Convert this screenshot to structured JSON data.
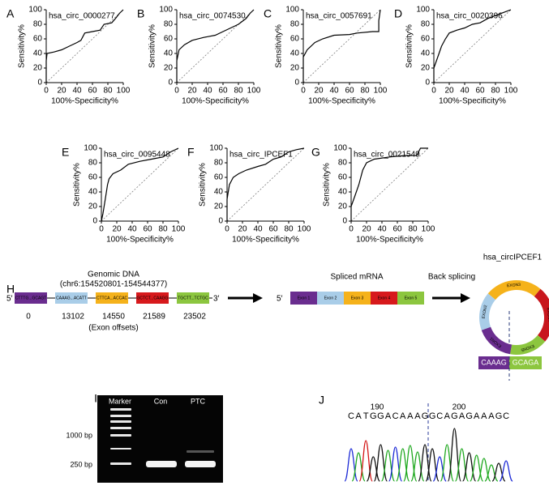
{
  "chart_data": [
    {
      "type": "line",
      "panel": "A",
      "title": "hsa_circ_0000277",
      "xlabel": "100%-Specificity%",
      "ylabel": "Sensitivity%",
      "color": "#000000",
      "x": [
        0,
        0,
        1,
        10,
        20,
        30,
        40,
        45,
        50,
        60,
        70,
        75,
        85,
        90,
        95,
        100
      ],
      "values": [
        0,
        30,
        40,
        42,
        45,
        50,
        55,
        58,
        68,
        70,
        72,
        80,
        82,
        88,
        95,
        100
      ],
      "xlim": [
        0,
        100
      ],
      "ylim": [
        0,
        100
      ],
      "xticks": [
        0,
        20,
        40,
        60,
        80,
        100
      ],
      "yticks": [
        0,
        20,
        40,
        60,
        80,
        100
      ]
    },
    {
      "type": "line",
      "panel": "B",
      "title": "hsa_circ_0074530",
      "xlabel": "100%-Specificity%",
      "ylabel": "Sensitivity%",
      "color": "#000000",
      "x": [
        0,
        0,
        3,
        10,
        20,
        35,
        50,
        60,
        70,
        80,
        90,
        95,
        100
      ],
      "values": [
        0,
        30,
        45,
        52,
        58,
        62,
        65,
        70,
        75,
        80,
        88,
        95,
        100
      ],
      "xlim": [
        0,
        100
      ],
      "ylim": [
        0,
        100
      ],
      "xticks": [
        0,
        20,
        40,
        60,
        80,
        100
      ],
      "yticks": [
        0,
        20,
        40,
        60,
        80,
        100
      ]
    },
    {
      "type": "line",
      "panel": "C",
      "title": "hsa_circ_0057691",
      "xlabel": "100%-Specificity%",
      "ylabel": "Sensitivity%",
      "color": "#000000",
      "x": [
        0,
        0,
        5,
        15,
        25,
        40,
        60,
        70,
        90,
        98,
        98,
        100
      ],
      "values": [
        0,
        35,
        45,
        55,
        60,
        65,
        66,
        68,
        70,
        70,
        85,
        100
      ],
      "xlim": [
        0,
        100
      ],
      "ylim": [
        0,
        100
      ],
      "xticks": [
        0,
        20,
        40,
        60,
        80,
        100
      ],
      "yticks": [
        0,
        20,
        40,
        60,
        80,
        100
      ]
    },
    {
      "type": "line",
      "panel": "D",
      "title": "hsa_circ_0020396",
      "xlabel": "100%-Specificity%",
      "ylabel": "Sensitivity%",
      "color": "#000000",
      "x": [
        0,
        0,
        5,
        10,
        15,
        20,
        30,
        40,
        50,
        60,
        70,
        80,
        90,
        100
      ],
      "values": [
        0,
        20,
        35,
        50,
        60,
        68,
        72,
        75,
        80,
        82,
        88,
        92,
        96,
        100
      ],
      "xlim": [
        0,
        100
      ],
      "ylim": [
        0,
        100
      ],
      "xticks": [
        0,
        20,
        40,
        60,
        80,
        100
      ],
      "yticks": [
        0,
        20,
        40,
        60,
        80,
        100
      ]
    },
    {
      "type": "line",
      "panel": "E",
      "title": "hsa_circ_0095448",
      "xlabel": "100%-Specificity%",
      "ylabel": "Sensitivity%",
      "color": "#000000",
      "x": [
        0,
        2,
        5,
        8,
        10,
        15,
        25,
        35,
        50,
        65,
        80,
        90,
        100
      ],
      "values": [
        0,
        10,
        30,
        50,
        58,
        65,
        70,
        78,
        82,
        85,
        88,
        95,
        100
      ],
      "xlim": [
        0,
        100
      ],
      "ylim": [
        0,
        100
      ],
      "xticks": [
        0,
        20,
        40,
        60,
        80,
        100
      ],
      "yticks": [
        0,
        20,
        40,
        60,
        80,
        100
      ]
    },
    {
      "type": "line",
      "panel": "F",
      "title": "hsa_circ_IPCEF1",
      "xlabel": "100%-Specificity%",
      "ylabel": "Sensitivity%",
      "color": "#000000",
      "x": [
        0,
        0,
        3,
        8,
        15,
        25,
        40,
        50,
        60,
        70,
        80,
        90,
        100
      ],
      "values": [
        0,
        30,
        50,
        60,
        65,
        70,
        75,
        78,
        85,
        88,
        95,
        98,
        100
      ],
      "xlim": [
        0,
        100
      ],
      "ylim": [
        0,
        100
      ],
      "xticks": [
        0,
        20,
        40,
        60,
        80,
        100
      ],
      "yticks": [
        0,
        20,
        40,
        60,
        80,
        100
      ]
    },
    {
      "type": "line",
      "panel": "G",
      "title": "hsa_circ_0021549",
      "xlabel": "100%-Specificity%",
      "ylabel": "Sensitivity%",
      "color": "#000000",
      "x": [
        0,
        0,
        5,
        10,
        15,
        20,
        30,
        50,
        70,
        85,
        90,
        100
      ],
      "values": [
        0,
        20,
        35,
        50,
        70,
        80,
        85,
        88,
        90,
        90,
        100,
        100
      ],
      "xlim": [
        0,
        100
      ],
      "ylim": [
        0,
        100
      ],
      "xticks": [
        0,
        20,
        40,
        60,
        80,
        100
      ],
      "yticks": [
        0,
        20,
        40,
        60,
        80,
        100
      ]
    }
  ],
  "panel_h": {
    "label": "H",
    "genomic_title": "Genomic DNA",
    "genomic_coords": "(chr6:154520801-154544377)",
    "five_prime": "5′",
    "three_prime": "3′",
    "exons": [
      "CTTTG...GCAGT",
      "CAAAG...ACATT",
      "CTTCA...ACCAC",
      "GCTCT...CAAGG",
      "TGCTT...TCTGC"
    ],
    "offsets": [
      0,
      13102,
      14550,
      21589,
      23502
    ],
    "offsets_caption": "(Exon offsets)",
    "mrna_title": "Spliced mRNA",
    "mrna_five_prime": "5′",
    "mrna_exons": [
      "Exon 1",
      "Exon 2",
      "Exon 3",
      "Exon 4",
      "Exon 5"
    ],
    "back_splicing": "Back splicing",
    "circ_title": "hsa_circIPCEF1",
    "ring_labels": [
      "EXON3",
      "EXON4",
      "EXON5",
      "EXON1",
      "EXON2"
    ],
    "junction": [
      "CAAAG",
      "GCAGA"
    ]
  },
  "panel_i": {
    "label": "I",
    "lanes": [
      "Marker",
      "Con",
      "PTC"
    ],
    "sizes": [
      "1000 bp",
      "250 bp"
    ]
  },
  "panel_j": {
    "label": "J",
    "positions": [
      190,
      200
    ],
    "sequence": [
      "C",
      "A",
      "T",
      "G",
      "G",
      "A",
      "C",
      "A",
      "A",
      "A",
      "G",
      "G",
      "C",
      "A",
      "G",
      "A",
      "G",
      "A",
      "A",
      "A",
      "G",
      "C"
    ]
  }
}
